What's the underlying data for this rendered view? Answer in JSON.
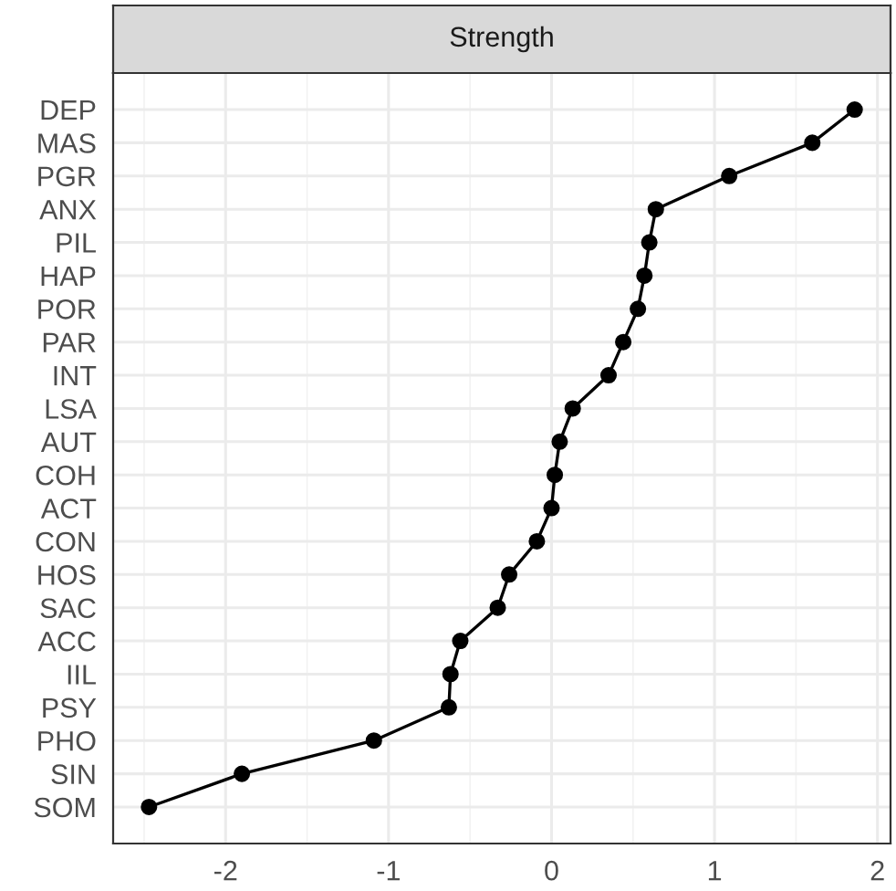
{
  "chart_data": {
    "type": "line",
    "title": "Strength",
    "orientation": "horizontal",
    "categories": [
      "DEP",
      "MAS",
      "PGR",
      "ANX",
      "PIL",
      "HAP",
      "POR",
      "PAR",
      "INT",
      "LSA",
      "AUT",
      "COH",
      "ACT",
      "CON",
      "HOS",
      "SAC",
      "ACC",
      "IIL",
      "PSY",
      "PHO",
      "SIN",
      "SOM"
    ],
    "series": [
      {
        "color": "#000000",
        "values": [
          1.86,
          1.6,
          1.09,
          0.64,
          0.6,
          0.57,
          0.53,
          0.44,
          0.35,
          0.13,
          0.05,
          0.02,
          0.0,
          -0.09,
          -0.26,
          -0.33,
          -0.56,
          -0.62,
          -0.63,
          -1.09,
          -1.9,
          -2.47
        ]
      }
    ],
    "xlim": [
      -2.69,
      2.08
    ],
    "xticks": [
      -2,
      -1,
      0,
      1,
      2
    ],
    "grid": true,
    "marker": "circle",
    "line_style": "solid"
  }
}
